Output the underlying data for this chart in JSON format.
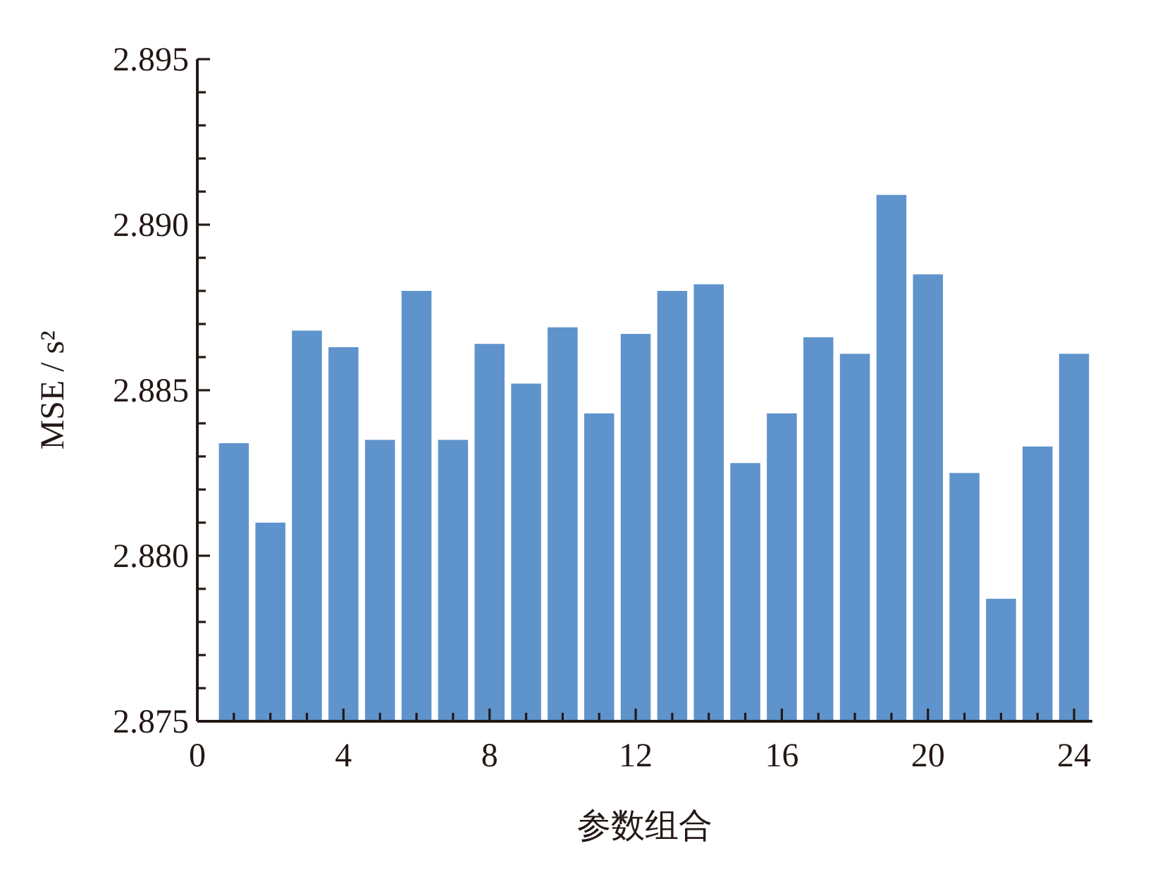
{
  "chart_data": {
    "type": "bar",
    "xlabel": "参数组合",
    "ylabel": "MSE / s²",
    "x": [
      1,
      2,
      3,
      4,
      5,
      6,
      7,
      8,
      9,
      10,
      11,
      12,
      13,
      14,
      15,
      16,
      17,
      18,
      19,
      20,
      21,
      22,
      23,
      24
    ],
    "values": [
      2.8834,
      2.881,
      2.8868,
      2.8863,
      2.8835,
      2.888,
      2.8835,
      2.8864,
      2.8852,
      2.8869,
      2.8843,
      2.8867,
      2.888,
      2.8882,
      2.8828,
      2.8843,
      2.8866,
      2.8861,
      2.8909,
      2.8885,
      2.8825,
      2.8787,
      2.8833,
      2.8861
    ],
    "color": "#5f93cc",
    "xlim": [
      0,
      24.5
    ],
    "xticks": [
      0,
      {
        "value": 1,
        "label": null
      },
      {
        "value": 2,
        "label": null
      },
      {
        "value": 3,
        "label": null
      },
      4,
      {
        "value": 5,
        "label": null
      },
      {
        "value": 6,
        "label": null
      },
      {
        "value": 7,
        "label": null
      },
      8,
      {
        "value": 9,
        "label": null
      },
      {
        "value": 10,
        "label": null
      },
      {
        "value": 11,
        "label": null
      },
      12,
      {
        "value": 13,
        "label": null
      },
      {
        "value": 14,
        "label": null
      },
      {
        "value": 15,
        "label": null
      },
      16,
      {
        "value": 17,
        "label": null
      },
      {
        "value": 18,
        "label": null
      },
      {
        "value": 19,
        "label": null
      },
      20,
      {
        "value": 21,
        "label": null
      },
      {
        "value": 22,
        "label": null
      },
      {
        "value": 23,
        "label": null
      },
      24
    ],
    "ylim": [
      2.875,
      2.895
    ],
    "yticks": [
      {
        "value": 2.875,
        "label": "2.875"
      },
      {
        "value": 2.876,
        "label": null
      },
      {
        "value": 2.877,
        "label": null
      },
      {
        "value": 2.878,
        "label": null
      },
      {
        "value": 2.879,
        "label": null
      },
      {
        "value": 2.88,
        "label": "2.880"
      },
      {
        "value": 2.881,
        "label": null
      },
      {
        "value": 2.882,
        "label": null
      },
      {
        "value": 2.883,
        "label": null
      },
      {
        "value": 2.884,
        "label": null
      },
      {
        "value": 2.885,
        "label": "2.885"
      },
      {
        "value": 2.886,
        "label": null
      },
      {
        "value": 2.887,
        "label": null
      },
      {
        "value": 2.888,
        "label": null
      },
      {
        "value": 2.889,
        "label": null
      },
      {
        "value": 2.89,
        "label": "2.890"
      },
      {
        "value": 2.891,
        "label": null
      },
      {
        "value": 2.892,
        "label": null
      },
      {
        "value": 2.893,
        "label": null
      },
      {
        "value": 2.894,
        "label": null
      },
      {
        "value": 2.895,
        "label": "2.895"
      }
    ],
    "grid": false
  }
}
